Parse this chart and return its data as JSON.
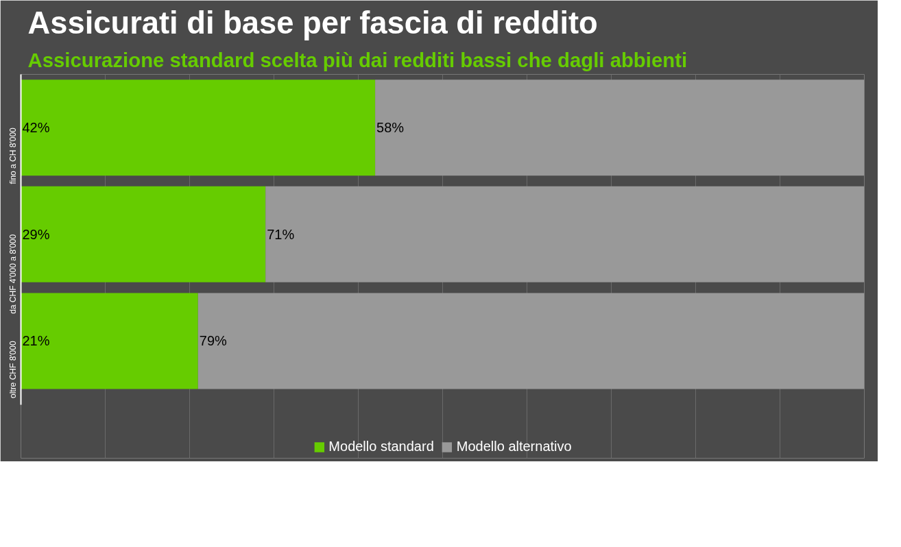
{
  "chart_data": {
    "type": "bar",
    "orientation": "horizontal",
    "stacked": true,
    "title": "Assicurati di base per fascia di reddito",
    "subtitle": "Assicurazione standard scelta più dai redditi bassi che dagli abbienti",
    "categories": [
      "fino a CH 8'000",
      "da CHF 4'000 a 8'000",
      "oltre CHF 8'000"
    ],
    "series": [
      {
        "name": "Modello standard",
        "color": "#66cc00",
        "values": [
          42,
          29,
          21
        ],
        "value_labels": [
          "42%",
          "29%",
          "21%"
        ]
      },
      {
        "name": "Modello alternativo",
        "color": "#999999",
        "values": [
          58,
          71,
          79
        ],
        "value_labels": [
          "58%",
          "71%",
          "79%"
        ]
      }
    ],
    "xlim": [
      0,
      100
    ],
    "xticks": [
      {
        "value": 0,
        "label": null
      },
      {
        "value": 10,
        "label": null
      },
      {
        "value": 20,
        "label": null
      },
      {
        "value": 30,
        "label": null
      },
      {
        "value": 40,
        "label": null
      },
      {
        "value": 50,
        "label": null
      },
      {
        "value": 60,
        "label": null
      },
      {
        "value": 70,
        "label": null
      },
      {
        "value": 80,
        "label": null
      },
      {
        "value": 90,
        "label": null
      },
      {
        "value": 100,
        "label": null
      }
    ],
    "grid": "x",
    "legend": "bottom",
    "tick_labels": "y"
  }
}
